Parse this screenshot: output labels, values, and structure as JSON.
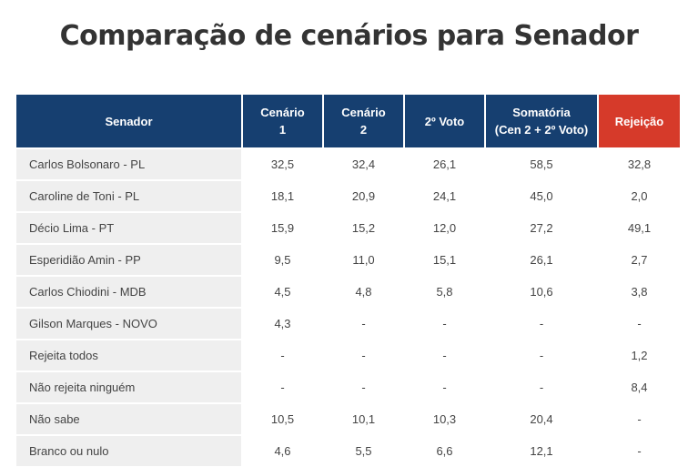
{
  "title": "Comparação de cenários para Senador",
  "colors": {
    "header_bg": "#163f70",
    "reject_header_bg": "#d63a2a",
    "name_col_bg": "#efefef",
    "text": "#444444"
  },
  "table": {
    "headers": {
      "senator": "Senador",
      "scenario1": [
        "Cenário",
        "1"
      ],
      "scenario2": [
        "Cenário",
        "2"
      ],
      "second_vote": "2º Voto",
      "sum": [
        "Somatória",
        "(Cen 2 + 2º Voto)"
      ],
      "rejection": "Rejeição"
    },
    "rows": [
      {
        "name": "Carlos Bolsonaro - PL",
        "c1": "32,5",
        "c2": "32,4",
        "v2": "26,1",
        "sum": "58,5",
        "rej": "32,8"
      },
      {
        "name": "Caroline de Toni - PL",
        "c1": "18,1",
        "c2": "20,9",
        "v2": "24,1",
        "sum": "45,0",
        "rej": "2,0"
      },
      {
        "name": "Décio Lima - PT",
        "c1": "15,9",
        "c2": "15,2",
        "v2": "12,0",
        "sum": "27,2",
        "rej": "49,1"
      },
      {
        "name": "Esperidião Amin - PP",
        "c1": "9,5",
        "c2": "11,0",
        "v2": "15,1",
        "sum": "26,1",
        "rej": "2,7"
      },
      {
        "name": "Carlos Chiodini - MDB",
        "c1": "4,5",
        "c2": "4,8",
        "v2": "5,8",
        "sum": "10,6",
        "rej": "3,8"
      },
      {
        "name": "Gilson Marques - NOVO",
        "c1": "4,3",
        "c2": "-",
        "v2": "-",
        "sum": "-",
        "rej": "-"
      },
      {
        "name": "Rejeita todos",
        "c1": "-",
        "c2": "-",
        "v2": "-",
        "sum": "-",
        "rej": "1,2"
      },
      {
        "name": "Não rejeita ninguém",
        "c1": "-",
        "c2": "-",
        "v2": "-",
        "sum": "-",
        "rej": "8,4"
      },
      {
        "name": "Não sabe",
        "c1": "10,5",
        "c2": "10,1",
        "v2": "10,3",
        "sum": "20,4",
        "rej": "-"
      },
      {
        "name": "Branco ou nulo",
        "c1": "4,6",
        "c2": "5,5",
        "v2": "6,6",
        "sum": "12,1",
        "rej": "-"
      }
    ]
  },
  "chart_data": {
    "type": "table",
    "title": "Comparação de cenários para Senador",
    "columns": [
      "Senador",
      "Cenário 1",
      "Cenário 2",
      "2º Voto",
      "Somatória (Cen 2 + 2º Voto)",
      "Rejeição"
    ],
    "rows": [
      [
        "Carlos Bolsonaro - PL",
        32.5,
        32.4,
        26.1,
        58.5,
        32.8
      ],
      [
        "Caroline de Toni - PL",
        18.1,
        20.9,
        24.1,
        45.0,
        2.0
      ],
      [
        "Décio Lima - PT",
        15.9,
        15.2,
        12.0,
        27.2,
        49.1
      ],
      [
        "Esperidião Amin - PP",
        9.5,
        11.0,
        15.1,
        26.1,
        2.7
      ],
      [
        "Carlos Chiodini - MDB",
        4.5,
        4.8,
        5.8,
        10.6,
        3.8
      ],
      [
        "Gilson Marques - NOVO",
        4.3,
        null,
        null,
        null,
        null
      ],
      [
        "Rejeita todos",
        null,
        null,
        null,
        null,
        1.2
      ],
      [
        "Não rejeita ninguém",
        null,
        null,
        null,
        null,
        8.4
      ],
      [
        "Não sabe",
        10.5,
        10.1,
        10.3,
        20.4,
        null
      ],
      [
        "Branco ou nulo",
        4.6,
        5.5,
        6.6,
        12.1,
        null
      ]
    ]
  }
}
